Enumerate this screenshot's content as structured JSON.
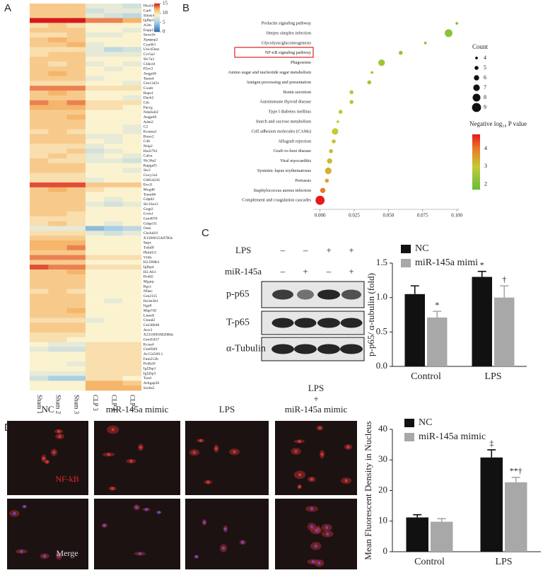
{
  "chart_data": [
    {
      "type": "heatmap",
      "panel": "A",
      "columns": [
        "Sham 1",
        "Sham 2",
        "Sham 3",
        "CLP 3",
        "CLP 4",
        "CLP 5"
      ],
      "rows": [
        "Hist1h1m",
        "Car6",
        "Slitrk4",
        "Igfbp3",
        "A2m",
        "Enpp2",
        "Sexn1b",
        "Xpnpep2",
        "Cyp4b1",
        "Unc45bos",
        "Ccr5a2",
        "Slc7a3",
        "Cldn10",
        "P2rx3",
        "Angptl6",
        "Tesm4",
        "Gm13451",
        "Cxadr",
        "Rspo1",
        "Dach2",
        "Cth",
        "Parvg",
        "Ndufa4l2",
        "Angptl8",
        "Adm2",
        "C2",
        "Kcnma1",
        "Runx2",
        "C4b",
        "Nrip2",
        "Hsd17b1",
        "Calca",
        "Slc36a2",
        "Rapgef5",
        "Stc2",
        "Gucy1a1",
        "GM14226",
        "Ero1l",
        "Mogd6",
        "Trem66",
        "Gdpd2",
        "Slc16a12",
        "Gngt2",
        "Gvin1",
        "Gm4070",
        "Gdap1l1",
        "Osm",
        "Chchd10",
        "X1500015A07Rik",
        "Sepx",
        "Tnfsf8",
        "Pkhd1l1",
        "Vldlr",
        "H2.DMb1",
        "Igfbp4",
        "H2.Ab1",
        "Pcdd2",
        "Mgarp",
        "Rgcc",
        "Nfasc",
        "Gm2115",
        "Hs3st3b1",
        "Itga8",
        "Map7d2",
        "Lmod1",
        "Ctnnd2",
        "Gm38048",
        "Aox3",
        "X2310003M20Rik",
        "Gm45457",
        "Kcna4",
        "Gm6949",
        "Ac154509.1",
        "Fam212b",
        "Pcdh20",
        "Igf2bp1",
        "Igf2bp3",
        "Tcerl",
        "Arhgap36",
        "Sorbs2"
      ],
      "values": [
        [
          11,
          11,
          11,
          8,
          8,
          7
        ],
        [
          11,
          11,
          11,
          7,
          8,
          8
        ],
        [
          11,
          11,
          11,
          8,
          7,
          6
        ],
        [
          15,
          15,
          15,
          13,
          13,
          12
        ],
        [
          10,
          11,
          10,
          9,
          9,
          9
        ],
        [
          11,
          11,
          11,
          9,
          9,
          8
        ],
        [
          10,
          10,
          11,
          8,
          8,
          9
        ],
        [
          11,
          12,
          11,
          9,
          9,
          9
        ],
        [
          11,
          11,
          12,
          8,
          9,
          9
        ],
        [
          10,
          10,
          10,
          8,
          6,
          7
        ],
        [
          10,
          11,
          11,
          8,
          8,
          8
        ],
        [
          11,
          11,
          11,
          9,
          9,
          9
        ],
        [
          11,
          10,
          11,
          8,
          9,
          8
        ],
        [
          11,
          11,
          11,
          9,
          8,
          9
        ],
        [
          11,
          12,
          11,
          9,
          9,
          9
        ],
        [
          11,
          11,
          11,
          8,
          9,
          9
        ],
        [
          10,
          10,
          10,
          9,
          9,
          8
        ],
        [
          13,
          13,
          13,
          10,
          10,
          10
        ],
        [
          11,
          12,
          11,
          9,
          9,
          9
        ],
        [
          11,
          11,
          11,
          9,
          9,
          8
        ],
        [
          13,
          12,
          13,
          10,
          10,
          10
        ],
        [
          12,
          12,
          12,
          10,
          10,
          9
        ],
        [
          11,
          11,
          11,
          9,
          9,
          9
        ],
        [
          11,
          11,
          12,
          9,
          9,
          9
        ],
        [
          11,
          11,
          11,
          9,
          9,
          9
        ],
        [
          11,
          11,
          11,
          9,
          9,
          8
        ],
        [
          10,
          11,
          10,
          9,
          9,
          8
        ],
        [
          11,
          11,
          11,
          8,
          8,
          9
        ],
        [
          11,
          11,
          11,
          9,
          8,
          9
        ],
        [
          10,
          10,
          10,
          8,
          9,
          9
        ],
        [
          10,
          10,
          11,
          7,
          8,
          9
        ],
        [
          10,
          11,
          10,
          8,
          9,
          8
        ],
        [
          11,
          10,
          10,
          8,
          8,
          7
        ],
        [
          11,
          11,
          11,
          9,
          9,
          9
        ],
        [
          11,
          11,
          11,
          9,
          9,
          8
        ],
        [
          10,
          10,
          10,
          9,
          9,
          9
        ],
        [
          10,
          10,
          10,
          8,
          9,
          9
        ],
        [
          14,
          14,
          14,
          11,
          11,
          11
        ],
        [
          11,
          12,
          11,
          10,
          9,
          9
        ],
        [
          11,
          11,
          11,
          9,
          9,
          9
        ],
        [
          11,
          11,
          11,
          9,
          8,
          9
        ],
        [
          11,
          11,
          11,
          8,
          7,
          8
        ],
        [
          11,
          11,
          11,
          9,
          9,
          9
        ],
        [
          11,
          11,
          10,
          9,
          9,
          9
        ],
        [
          10,
          10,
          10,
          9,
          9,
          9
        ],
        [
          10,
          11,
          10,
          9,
          8,
          9
        ],
        [
          8,
          8,
          8,
          4,
          5,
          6
        ],
        [
          10,
          10,
          10,
          8,
          7,
          8
        ],
        [
          11,
          11,
          11,
          9,
          9,
          9
        ],
        [
          12,
          12,
          12,
          9,
          9,
          9
        ],
        [
          12,
          12,
          13,
          9,
          9,
          9
        ],
        [
          11,
          11,
          11,
          9,
          9,
          9
        ],
        [
          13,
          13,
          13,
          10,
          10,
          10
        ],
        [
          11,
          11,
          11,
          9,
          9,
          9
        ],
        [
          14,
          13,
          13,
          10,
          10,
          10
        ],
        [
          11,
          11,
          12,
          9,
          9,
          9
        ],
        [
          11,
          11,
          11,
          9,
          9,
          9
        ],
        [
          11,
          11,
          11,
          9,
          9,
          9
        ],
        [
          11,
          11,
          11,
          9,
          9,
          9
        ],
        [
          10,
          11,
          10,
          9,
          9,
          9
        ],
        [
          11,
          11,
          11,
          9,
          9,
          9
        ],
        [
          11,
          11,
          11,
          9,
          8,
          9
        ],
        [
          11,
          11,
          11,
          9,
          9,
          9
        ],
        [
          11,
          11,
          12,
          9,
          9,
          9
        ],
        [
          11,
          11,
          11,
          9,
          9,
          9
        ],
        [
          10,
          10,
          10,
          8,
          9,
          9
        ],
        [
          11,
          11,
          11,
          9,
          9,
          9
        ],
        [
          11,
          11,
          11,
          9,
          9,
          9
        ],
        [
          10,
          10,
          10,
          9,
          9,
          9
        ],
        [
          10,
          10,
          9,
          9,
          9,
          9
        ],
        [
          9,
          8,
          8,
          10,
          10,
          10
        ],
        [
          8,
          7,
          7,
          10,
          10,
          10
        ],
        [
          9,
          9,
          9,
          10,
          10,
          10
        ],
        [
          9,
          9,
          9,
          10,
          10,
          10
        ],
        [
          9,
          9,
          8,
          10,
          10,
          10
        ],
        [
          9,
          9,
          9,
          10,
          10,
          10
        ],
        [
          8,
          8,
          8,
          10,
          10,
          10
        ],
        [
          7,
          5,
          5,
          10,
          10,
          9
        ],
        [
          9,
          9,
          9,
          12,
          12,
          11
        ],
        [
          9,
          9,
          9,
          12,
          12,
          12
        ]
      ],
      "zlim": [
        0,
        15
      ],
      "colorbar_ticks": [
        0,
        5,
        10,
        15
      ],
      "colorscale": [
        [
          0,
          "#2c6ab1"
        ],
        [
          5,
          "#a8cfe6"
        ],
        [
          9,
          "#fbf3d0"
        ],
        [
          12,
          "#f5b56a"
        ],
        [
          15,
          "#d7191c"
        ]
      ]
    },
    {
      "type": "bubble",
      "panel": "B",
      "categories": [
        "Prolactin signaling pathway",
        "Herpes simplex infection",
        "Glycolysis/gluconeogenesis",
        "NF-κB signaling pathway",
        "Phagosome",
        "Amino sugar and nucleotide sugar metabolism",
        "Antigen processing and presentation",
        "Renin secretion",
        "Autoimmune thyroid disease",
        "Type I diabetes mellitus",
        "Starch and sucrose metabolism",
        "Cell adhesion molecules (CAMs)",
        "Allograft rejection",
        "Graft-vs-host disease",
        "Viral myocarditis",
        "Systemic lupus erythematosus",
        "Pertussis",
        "Staphylococcus aureus infection",
        "Complement and coagulation cascades"
      ],
      "values": [
        0.1,
        0.094,
        0.077,
        0.059,
        0.045,
        0.038,
        0.036,
        0.023,
        0.023,
        0.015,
        0.013,
        0.011,
        0.01,
        0.008,
        0.007,
        0.006,
        0.005,
        0.002,
        0.0
      ],
      "count": [
        4,
        8,
        4,
        5,
        7,
        4,
        5,
        5,
        5,
        5,
        4,
        7,
        5,
        5,
        6,
        7,
        5,
        6,
        9
      ],
      "neg_log_p": [
        2.0,
        2.2,
        2.2,
        2.3,
        2.5,
        2.5,
        2.6,
        2.8,
        2.8,
        2.9,
        3.0,
        3.0,
        3.1,
        3.2,
        3.2,
        3.3,
        3.5,
        4.0,
        4.8
      ],
      "xlim": [
        -0.005,
        0.102
      ],
      "xticks": [
        {
          "value": 0,
          "label": "0.000"
        },
        {
          "value": 0.025,
          "label": "0.025"
        },
        {
          "value": 0.05,
          "label": "0.050"
        },
        {
          "value": 0.075,
          "label": "0.075"
        },
        {
          "value": 0.1,
          "label": "0.100"
        }
      ],
      "size_legend_title": "Count",
      "size_legend": [
        4,
        5,
        6,
        7,
        8,
        9
      ],
      "color_legend_title": "Negative log₁₀ P value",
      "color_ticks": [
        2,
        3,
        4
      ],
      "color_range": [
        1.7,
        4.8
      ],
      "colorscale": [
        [
          1.7,
          "#66bd3a"
        ],
        [
          3,
          "#c5c934"
        ],
        [
          4,
          "#ea7a28"
        ],
        [
          4.8,
          "#e8191c"
        ]
      ]
    },
    {
      "type": "bar",
      "panel": "C",
      "categories": [
        "Control",
        "LPS"
      ],
      "ylabel": "p-p65/ α-tubulin (fold)",
      "series": [
        {
          "name": "NC",
          "color": "#111111",
          "values": [
            1.05,
            1.3
          ],
          "errors": [
            0.12,
            0.08
          ],
          "annotations": [
            null,
            "*"
          ]
        },
        {
          "name": "miR-145a mimi",
          "color": "#a8a8a8",
          "values": [
            0.71,
            1.0
          ],
          "errors": [
            0.09,
            0.17
          ],
          "annotations": [
            "*",
            "†"
          ]
        }
      ],
      "ylim": [
        0,
        1.5
      ],
      "yticks": [
        {
          "value": 0,
          "label": "0.0"
        },
        {
          "value": 0.5,
          "label": "0.5"
        },
        {
          "value": 1,
          "label": "1.0"
        },
        {
          "value": 1.5,
          "label": "1.5"
        }
      ]
    },
    {
      "type": "bar",
      "panel": "D",
      "categories": [
        "Control",
        "LPS"
      ],
      "ylabel": "Mean Fluorescent Density in Nucleus",
      "series": [
        {
          "name": "NC",
          "color": "#111111",
          "values": [
            11.2,
            30.8
          ],
          "errors": [
            0.9,
            2.5
          ],
          "annotations": [
            null,
            "‡"
          ]
        },
        {
          "name": "miR-145a mimic",
          "color": "#a8a8a8",
          "values": [
            9.8,
            22.7
          ],
          "errors": [
            1.0,
            1.6
          ],
          "annotations": [
            null,
            "**†"
          ]
        }
      ],
      "ylim": [
        0,
        40
      ],
      "yticks": [
        0,
        10,
        20,
        30,
        40
      ]
    }
  ],
  "blot": {
    "row_labels": [
      "LPS",
      "miR-145a"
    ],
    "lps": [
      "–",
      "–",
      "+",
      "+"
    ],
    "mir": [
      "–",
      "+",
      "–",
      "+"
    ],
    "bands": [
      "p-p65",
      "T-p65",
      "α-Tubulin"
    ]
  },
  "micrographs": {
    "columns": [
      "NC",
      "miR-145a mimic",
      "LPS",
      "miR-145a mimic"
    ],
    "combo_lines": [
      "LPS",
      "+"
    ],
    "rows": [
      "NF-kB",
      "Merge"
    ]
  }
}
